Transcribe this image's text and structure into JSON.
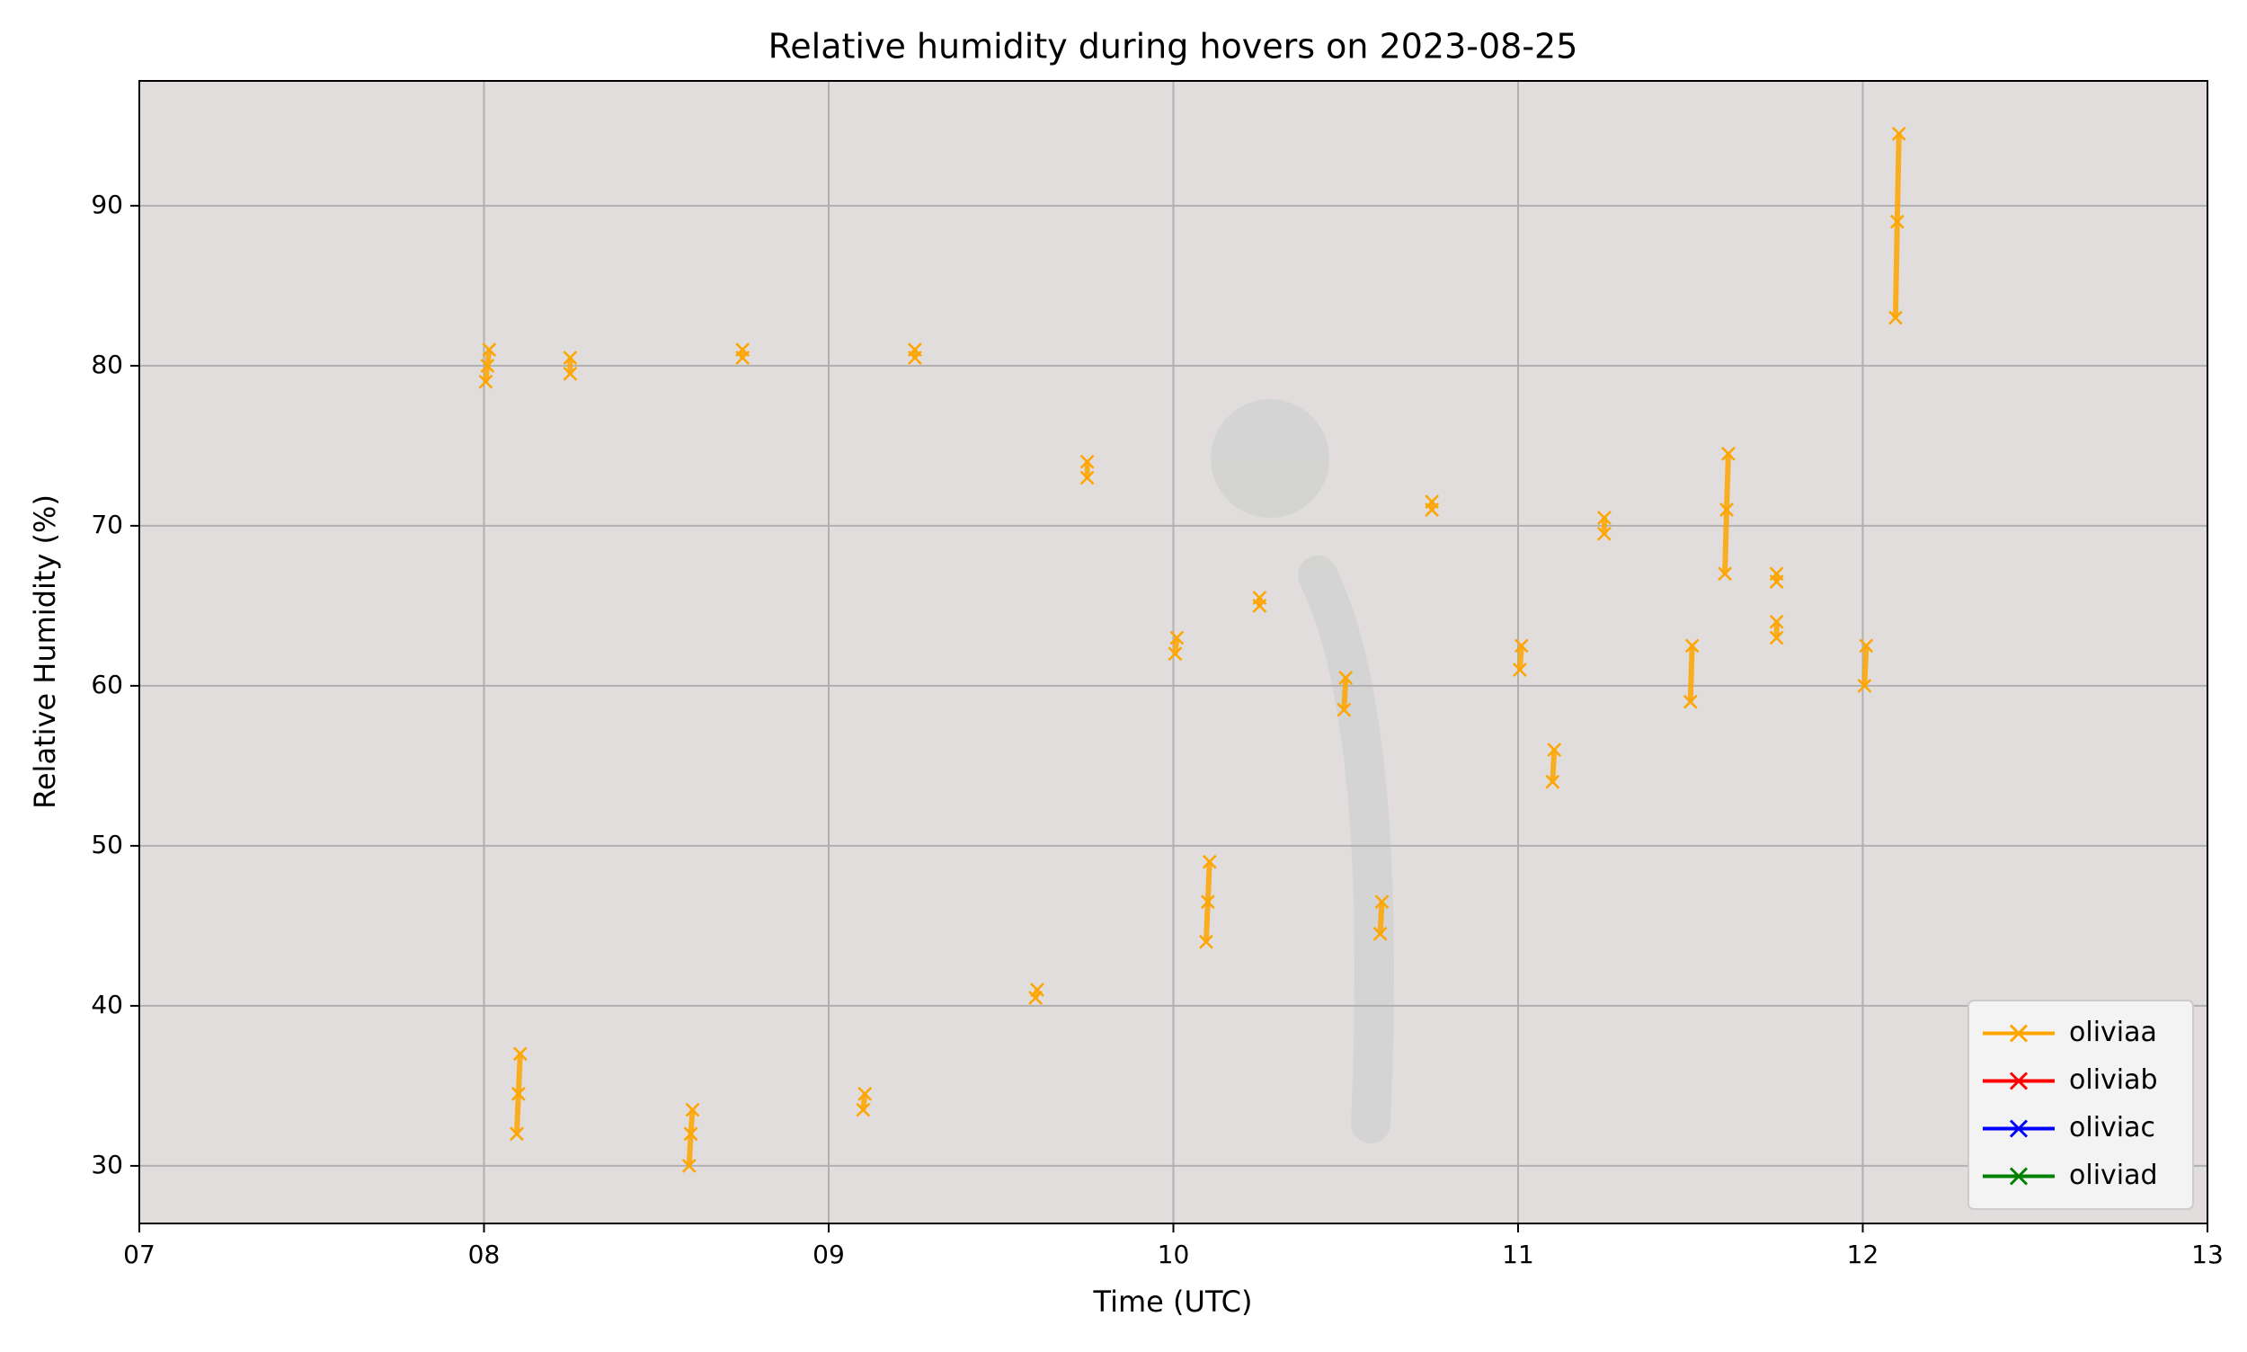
{
  "chart_data": {
    "type": "line",
    "title": "Relative humidity during hovers on 2023-08-25",
    "xlabel": "Time (UTC)",
    "ylabel": "Relative Humidity (%)",
    "xlim": [
      7,
      13
    ],
    "xticks": [
      {
        "value": 7,
        "label": "07"
      },
      {
        "value": 8,
        "label": "08"
      },
      {
        "value": 9,
        "label": "09"
      },
      {
        "value": 10,
        "label": "10"
      },
      {
        "value": 11,
        "label": "11"
      },
      {
        "value": 12,
        "label": "12"
      },
      {
        "value": 13,
        "label": "13"
      }
    ],
    "ylim": [
      26.4,
      97.8
    ],
    "yticks": [
      30,
      40,
      50,
      60,
      70,
      80,
      90
    ],
    "grid": true,
    "legend": "lower right",
    "marker": "x",
    "series": [
      {
        "name": "oliviaa",
        "color": "#ffa500",
        "x": [
          8.005,
          8.01,
          8.015,
          null,
          8.095,
          8.1,
          8.105,
          null,
          8.25,
          8.25,
          null,
          8.595,
          8.6,
          8.605,
          null,
          8.75,
          8.75,
          null,
          9.1,
          9.105,
          null,
          9.25,
          9.25,
          null,
          9.6,
          9.605,
          null,
          9.75,
          9.75,
          null,
          10.005,
          10.01,
          null,
          10.095,
          10.1,
          10.105,
          null,
          10.25,
          10.25,
          null,
          10.495,
          10.5,
          null,
          10.6,
          10.605,
          null,
          10.75,
          10.75,
          null,
          11.005,
          11.01,
          null,
          11.1,
          11.105,
          null,
          11.25,
          11.25,
          null,
          11.5,
          11.505,
          null,
          11.6,
          11.605,
          11.61,
          null,
          11.75,
          11.75,
          null,
          11.75,
          11.75,
          null,
          12.005,
          12.01,
          null,
          12.095,
          12.1,
          12.105
        ],
        "values": [
          79,
          80,
          81,
          null,
          32,
          34.5,
          37,
          null,
          79.5,
          80.5,
          null,
          30,
          32,
          33.5,
          null,
          80.5,
          81,
          null,
          33.5,
          34.5,
          null,
          80.5,
          81,
          null,
          40.5,
          41,
          null,
          73,
          74,
          null,
          62,
          63,
          null,
          44,
          46.5,
          49,
          null,
          65,
          65.5,
          null,
          58.5,
          60.5,
          null,
          44.5,
          46.5,
          null,
          71,
          71.5,
          null,
          61,
          62.5,
          null,
          54,
          56,
          null,
          69.5,
          70.5,
          null,
          59,
          62.5,
          null,
          67,
          71,
          74.5,
          null,
          66.5,
          67,
          null,
          63,
          64,
          null,
          60,
          62.5,
          null,
          83,
          89,
          94.5
        ]
      },
      {
        "name": "oliviab",
        "color": "#ff0000",
        "x": [],
        "values": []
      },
      {
        "name": "oliviac",
        "color": "#0000ff",
        "x": [],
        "values": []
      },
      {
        "name": "oliviad",
        "color": "#008000",
        "x": [],
        "values": []
      }
    ]
  }
}
